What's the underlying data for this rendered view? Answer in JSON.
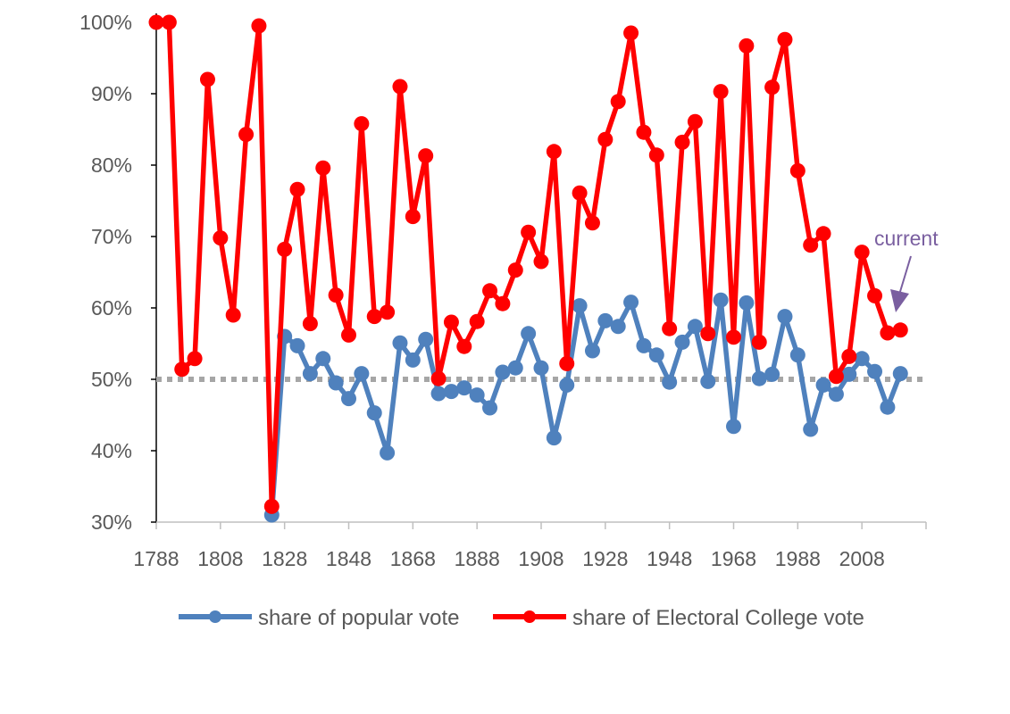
{
  "chart_data": {
    "type": "line",
    "title": "",
    "xlabel": "",
    "ylabel": "",
    "xlim": [
      1788,
      2028
    ],
    "ylim": [
      30,
      100
    ],
    "x_ticks": [
      "1788",
      "1808",
      "1828",
      "1848",
      "1868",
      "1888",
      "1908",
      "1928",
      "1948",
      "1968",
      "1988",
      "2008"
    ],
    "y_ticks": [
      "30%",
      "40%",
      "50%",
      "60%",
      "70%",
      "80%",
      "90%",
      "100%"
    ],
    "reference_line": {
      "y": 50,
      "style": "dotted",
      "color": "#a6a6a6"
    },
    "x": [
      1788,
      1792,
      1796,
      1800,
      1804,
      1808,
      1812,
      1816,
      1820,
      1824,
      1828,
      1832,
      1836,
      1840,
      1844,
      1848,
      1852,
      1856,
      1860,
      1864,
      1868,
      1872,
      1876,
      1880,
      1884,
      1888,
      1892,
      1896,
      1900,
      1904,
      1908,
      1912,
      1916,
      1920,
      1924,
      1928,
      1932,
      1936,
      1940,
      1944,
      1948,
      1952,
      1956,
      1960,
      1964,
      1968,
      1972,
      1976,
      1980,
      1984,
      1988,
      1992,
      1996,
      2000,
      2004,
      2008,
      2012,
      2016,
      2020
    ],
    "series": [
      {
        "name": "share of popular vote",
        "color": "#4f81bd",
        "values": [
          null,
          null,
          null,
          null,
          null,
          null,
          null,
          null,
          null,
          31,
          56,
          54.7,
          50.8,
          52.9,
          49.5,
          47.3,
          50.8,
          45.3,
          39.7,
          55.1,
          52.7,
          55.6,
          48,
          48.3,
          48.8,
          47.8,
          46,
          51,
          51.6,
          56.4,
          51.6,
          41.8,
          49.2,
          60.3,
          54,
          58.2,
          57.4,
          60.8,
          54.7,
          53.4,
          49.6,
          55.2,
          57.4,
          49.7,
          61.1,
          43.4,
          60.7,
          50.1,
          50.7,
          58.8,
          53.4,
          43,
          49.2,
          47.9,
          50.7,
          52.9,
          51.1,
          46.1,
          50.8
        ]
      },
      {
        "name": "share of Electoral College vote",
        "color": "#ff0000",
        "values": [
          100,
          100,
          51.4,
          52.9,
          92,
          69.8,
          59,
          84.3,
          99.5,
          32.2,
          68.2,
          76.6,
          57.8,
          79.6,
          61.8,
          56.2,
          85.8,
          58.8,
          59.4,
          91,
          72.8,
          81.3,
          50.1,
          58,
          54.6,
          58.1,
          62.4,
          60.6,
          65.3,
          70.6,
          66.5,
          81.9,
          52.2,
          76.1,
          71.9,
          83.6,
          88.9,
          98.5,
          84.6,
          81.4,
          57.1,
          83.2,
          86.1,
          56.4,
          90.3,
          55.9,
          96.7,
          55.2,
          90.9,
          97.6,
          79.2,
          68.8,
          70.4,
          50.4,
          53.2,
          67.8,
          61.7,
          56.5,
          56.9
        ]
      }
    ],
    "legend": {
      "placement": "bottom"
    },
    "annotation": {
      "text": "current",
      "color": "#7a5fa0"
    }
  }
}
